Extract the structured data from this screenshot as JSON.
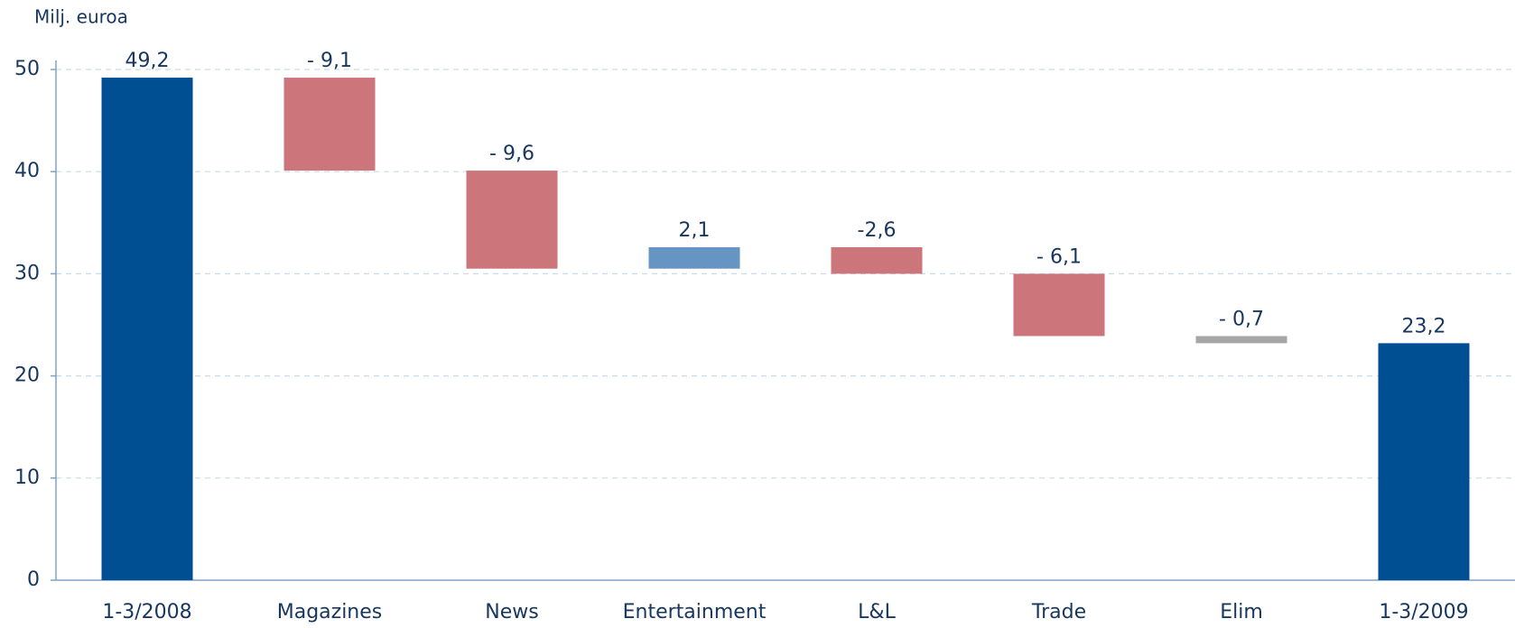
{
  "chart_data": {
    "type": "waterfall",
    "y_label": "Milj. euroa",
    "categories": [
      "1-3/2008",
      "Magazines",
      "News",
      "Entertainment",
      "L&L",
      "Trade",
      "Elim",
      "1-3/2009"
    ],
    "values": [
      49.2,
      -9.1,
      -9.6,
      2.1,
      -2.6,
      -6.1,
      -0.7,
      23.2
    ],
    "value_labels": [
      "49,2",
      "- 9,1",
      "- 9,6",
      "2,1",
      "-2,6",
      "- 6,1",
      "- 0,7",
      "23,2"
    ],
    "colors": [
      "#004f93",
      "#cc767c",
      "#cc767c",
      "#6694c3",
      "#cc767c",
      "#cc767c",
      "#a6a6a6",
      "#004f93"
    ],
    "ylim": [
      0,
      50
    ],
    "yticks": [
      0,
      10,
      20,
      30,
      40,
      50
    ],
    "grid": true
  }
}
